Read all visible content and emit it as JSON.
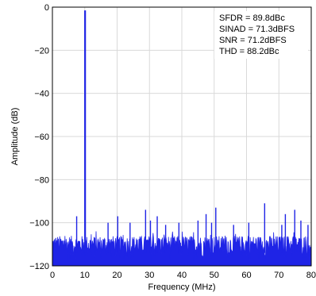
{
  "chart_data": {
    "type": "line",
    "title": "",
    "xlabel": "Frequency (MHz)",
    "ylabel": "Amplitude (dB)",
    "xlim": [
      0,
      80
    ],
    "ylim": [
      -120,
      0
    ],
    "x_ticks": [
      "0",
      "10",
      "20",
      "30",
      "40",
      "50",
      "60",
      "70",
      "80"
    ],
    "y_ticks": [
      "0",
      "−20",
      "−40",
      "−60",
      "−80",
      "−100",
      "−120"
    ],
    "grid": true,
    "line_color": "#1f24e6",
    "noise_floor_db": [
      -118,
      -104
    ],
    "fundamental": {
      "x": 10.1,
      "y": -1.5
    },
    "spurs": [
      {
        "x": 7.5,
        "y": -97
      },
      {
        "x": 10.1,
        "y": -91
      },
      {
        "x": 17.2,
        "y": -100
      },
      {
        "x": 20.2,
        "y": -97
      },
      {
        "x": 24.0,
        "y": -100
      },
      {
        "x": 28.8,
        "y": -94
      },
      {
        "x": 30.3,
        "y": -99
      },
      {
        "x": 32.4,
        "y": -97
      },
      {
        "x": 35.0,
        "y": -101
      },
      {
        "x": 39.1,
        "y": -100
      },
      {
        "x": 45.0,
        "y": -99
      },
      {
        "x": 47.5,
        "y": -96
      },
      {
        "x": 49.2,
        "y": -100
      },
      {
        "x": 50.5,
        "y": -93
      },
      {
        "x": 56.0,
        "y": -101
      },
      {
        "x": 60.7,
        "y": -100
      },
      {
        "x": 65.6,
        "y": -91
      },
      {
        "x": 70.9,
        "y": -101
      },
      {
        "x": 72.0,
        "y": -96
      },
      {
        "x": 74.9,
        "y": -94
      },
      {
        "x": 76.8,
        "y": -99
      },
      {
        "x": 79.0,
        "y": -101
      }
    ],
    "annotations": [
      "SFDR = 89.8dBc",
      "SINAD = 71.3dBFS",
      "SNR = 71.2dBFS",
      "THD = 88.2dBc"
    ]
  }
}
